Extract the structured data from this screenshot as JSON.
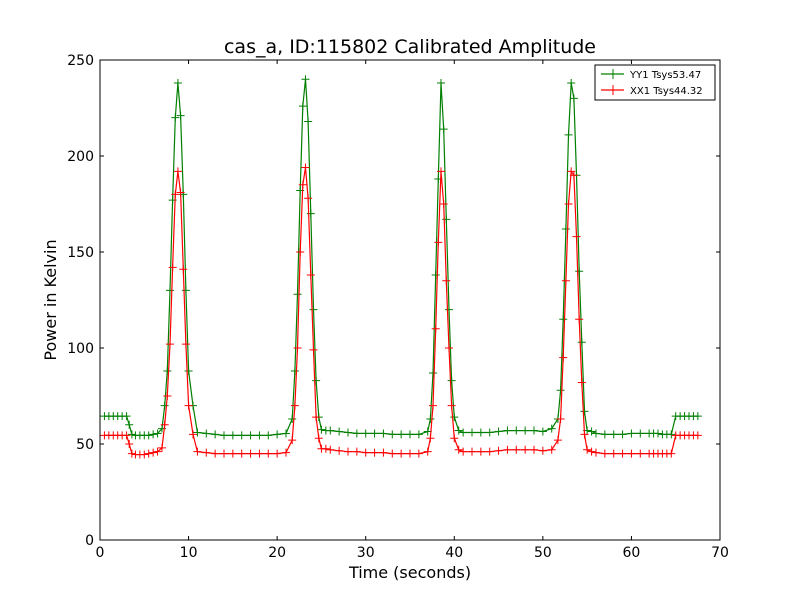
{
  "chart_data": {
    "type": "line",
    "title": "cas_a, ID:115802 Calibrated Amplitude",
    "xlabel": "Time (seconds)",
    "ylabel": "Power in Kelvin",
    "xlim": [
      0,
      70
    ],
    "ylim": [
      0,
      250
    ],
    "xticks": [
      0,
      10,
      20,
      30,
      40,
      50,
      60,
      70
    ],
    "yticks": [
      0,
      50,
      100,
      150,
      200,
      250
    ],
    "grid": false,
    "legend_position": "top-right",
    "marker": "+",
    "series": [
      {
        "name": "YY1 Tsys53.47",
        "color": "#008000",
        "x": [
          0.5,
          1.0,
          1.5,
          2.0,
          2.5,
          3.0,
          3.3,
          3.6,
          4.0,
          4.5,
          5.0,
          5.5,
          6.0,
          6.5,
          7.0,
          7.3,
          7.6,
          7.9,
          8.2,
          8.5,
          8.8,
          9.1,
          9.4,
          9.7,
          10.0,
          10.5,
          11.0,
          12.0,
          13.0,
          14.0,
          15.0,
          16.0,
          17.0,
          18.0,
          19.0,
          20.0,
          21.0,
          21.7,
          22.0,
          22.3,
          22.6,
          22.9,
          23.2,
          23.5,
          23.8,
          24.1,
          24.4,
          24.7,
          25.0,
          25.5,
          26.0,
          27.0,
          28.0,
          29.0,
          30.0,
          31.0,
          32.0,
          33.0,
          34.0,
          35.0,
          36.0,
          37.0,
          37.3,
          37.6,
          37.9,
          38.2,
          38.5,
          38.8,
          39.1,
          39.4,
          39.7,
          40.0,
          40.5,
          41.0,
          42.0,
          43.0,
          44.0,
          45.0,
          46.0,
          47.0,
          48.0,
          49.0,
          50.0,
          51.0,
          51.7,
          52.0,
          52.3,
          52.6,
          52.9,
          53.2,
          53.5,
          53.8,
          54.1,
          54.4,
          54.7,
          55.0,
          55.5,
          56.0,
          57.0,
          58.0,
          59.0,
          60.0,
          61.0,
          62.0,
          62.5,
          63.0,
          63.5,
          64.0,
          64.5,
          65.0,
          65.5,
          66.0,
          66.5,
          67.0,
          67.5
        ],
        "y": [
          64.5,
          64.5,
          64.5,
          64.5,
          64.5,
          64.5,
          60,
          55,
          54.5,
          54.5,
          54.5,
          54.5,
          55,
          55.5,
          58,
          70,
          88,
          130,
          177,
          220,
          238,
          221,
          180,
          130,
          88,
          70,
          56,
          55.5,
          55,
          54.5,
          54.5,
          54.5,
          54.5,
          54.5,
          54.5,
          55,
          55.5,
          63,
          88,
          128,
          182,
          226,
          240,
          218,
          170,
          120,
          83,
          64,
          57.5,
          57,
          57,
          56.5,
          56,
          55.5,
          55.5,
          55.5,
          55.5,
          55,
          55,
          55,
          55,
          56.5,
          63,
          87,
          138,
          188,
          238,
          214,
          167,
          120,
          83,
          64,
          57,
          56,
          56,
          56,
          56,
          56.5,
          57,
          57,
          57,
          57,
          56.5,
          58,
          63,
          78,
          115,
          162,
          211,
          238,
          230,
          190,
          140,
          103,
          67,
          57,
          56.5,
          55.5,
          55,
          55,
          55,
          55.5,
          55.5,
          55.5,
          55.5,
          55.5,
          55,
          55,
          55,
          64.5,
          64.5,
          64.5,
          64.5,
          64.5,
          64.5
        ]
      },
      {
        "name": "XX1 Tsys44.32",
        "color": "#ff0000",
        "x": [
          0.5,
          1.0,
          1.5,
          2.0,
          2.5,
          3.0,
          3.3,
          3.6,
          4.0,
          4.5,
          5.0,
          5.5,
          6.0,
          6.5,
          7.0,
          7.3,
          7.6,
          7.9,
          8.2,
          8.5,
          8.8,
          9.1,
          9.4,
          9.7,
          10.0,
          10.5,
          11.0,
          12.0,
          13.0,
          14.0,
          15.0,
          16.0,
          17.0,
          18.0,
          19.0,
          20.0,
          21.0,
          21.7,
          22.0,
          22.3,
          22.6,
          22.9,
          23.2,
          23.5,
          23.8,
          24.1,
          24.4,
          24.7,
          25.0,
          25.5,
          26.0,
          27.0,
          28.0,
          29.0,
          30.0,
          31.0,
          32.0,
          33.0,
          34.0,
          35.0,
          36.0,
          37.0,
          37.3,
          37.6,
          37.9,
          38.2,
          38.5,
          38.8,
          39.1,
          39.4,
          39.7,
          40.0,
          40.5,
          41.0,
          42.0,
          43.0,
          44.0,
          45.0,
          46.0,
          47.0,
          48.0,
          49.0,
          50.0,
          51.0,
          51.7,
          52.0,
          52.3,
          52.6,
          52.9,
          53.2,
          53.5,
          53.8,
          54.1,
          54.4,
          54.7,
          55.0,
          55.5,
          56.0,
          57.0,
          58.0,
          59.0,
          60.0,
          61.0,
          62.0,
          62.5,
          63.0,
          63.5,
          64.0,
          64.5,
          65.0,
          65.5,
          66.0,
          66.5,
          67.0,
          67.5
        ],
        "y": [
          54.5,
          54.5,
          54.5,
          54.5,
          54.5,
          54.5,
          50,
          45,
          44.5,
          44.5,
          44.5,
          45,
          45.5,
          46,
          48,
          60,
          75,
          102,
          142,
          180,
          192,
          181,
          141,
          102,
          70,
          55,
          46,
          45.5,
          45,
          45,
          45,
          45,
          45,
          45,
          45,
          45,
          45.5,
          52,
          70,
          100,
          150,
          185,
          194,
          178,
          138,
          99,
          64,
          53,
          47.5,
          47.5,
          47,
          46.5,
          46,
          46,
          45.5,
          45.5,
          45.5,
          45,
          45,
          45,
          45,
          46,
          53,
          70,
          110,
          155,
          192,
          175,
          135,
          100,
          70,
          53,
          47,
          46,
          46,
          46,
          46,
          46.5,
          47,
          47,
          47,
          47,
          46.5,
          47,
          52,
          63,
          95,
          135,
          175,
          192,
          190,
          158,
          115,
          82,
          55,
          47,
          46,
          45.5,
          45,
          45,
          45,
          45,
          45,
          45,
          45,
          45,
          45,
          45,
          45,
          54.5,
          54.5,
          54.5,
          54.5,
          54.5,
          54.5
        ]
      }
    ]
  }
}
